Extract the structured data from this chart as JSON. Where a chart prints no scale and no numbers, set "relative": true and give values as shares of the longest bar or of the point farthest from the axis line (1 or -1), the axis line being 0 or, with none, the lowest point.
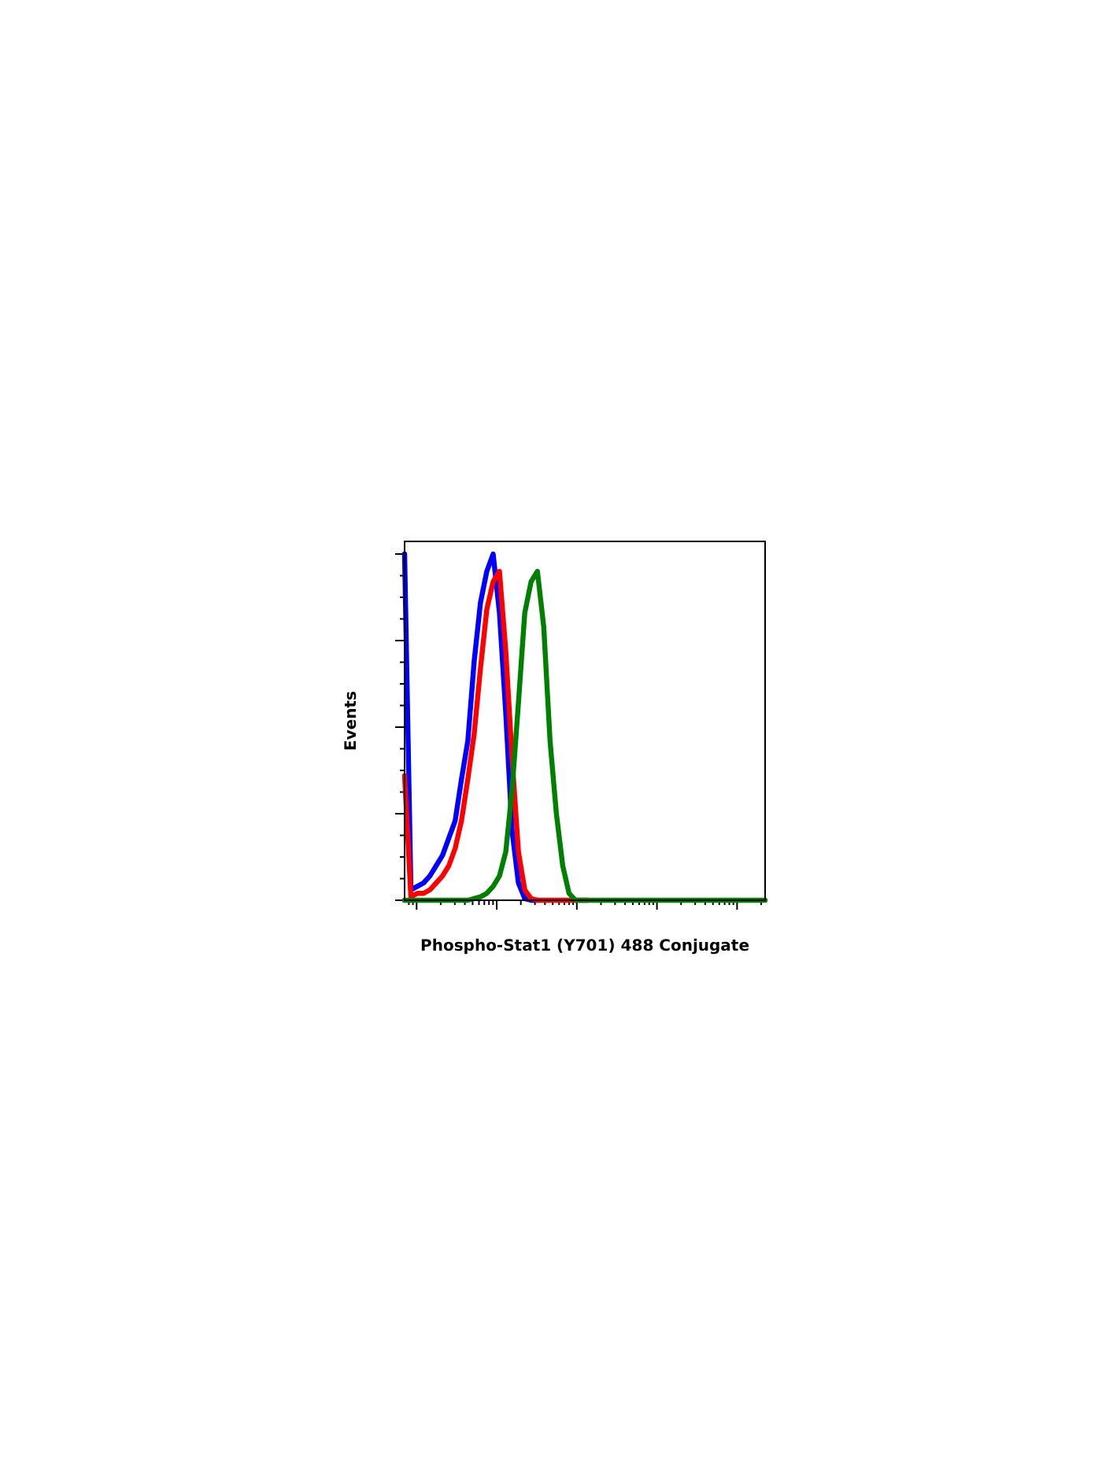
{
  "chart_data": {
    "type": "line",
    "relative": true,
    "xlabel": "Phospho-Stat1 (Y701) 488 Conjugate",
    "ylabel": "Events",
    "line_style": "solid",
    "categories": [
      null,
      null,
      null,
      null,
      null,
      null,
      null,
      null,
      null,
      null,
      null,
      null,
      null,
      null,
      null,
      null,
      null,
      null,
      null,
      null,
      null,
      null,
      null,
      null,
      null,
      null,
      null,
      null,
      null,
      null,
      null,
      null,
      null,
      null,
      null,
      null,
      null,
      null,
      null,
      null,
      null,
      null,
      null,
      null,
      null,
      null,
      null,
      null,
      null,
      null,
      null,
      null,
      null,
      null,
      null,
      null,
      null,
      null
    ],
    "series": [
      {
        "color": "#0000ff",
        "values": [
          1.0,
          0.03,
          0.04,
          0.05,
          0.07,
          0.1,
          0.13,
          0.18,
          0.23,
          0.35,
          0.46,
          0.69,
          0.86,
          0.95,
          1.0,
          0.83,
          0.54,
          0.2,
          0.05,
          0.005,
          0,
          0,
          null,
          null,
          null,
          null,
          null,
          null,
          null,
          null,
          null,
          null,
          null,
          null,
          null,
          null,
          null,
          null,
          null,
          null,
          null,
          null,
          null,
          null,
          null,
          null,
          null,
          null,
          null,
          null,
          null,
          null,
          null,
          null,
          null,
          null,
          null,
          null
        ]
      },
      {
        "color": "#ff0000",
        "values": [
          0.36,
          0.01,
          0.02,
          0.02,
          0.03,
          0.05,
          0.07,
          0.1,
          0.15,
          0.23,
          0.35,
          0.48,
          0.67,
          0.84,
          0.92,
          0.95,
          0.72,
          0.41,
          0.14,
          0.03,
          0.005,
          0,
          0,
          0,
          0,
          0,
          0,
          0,
          0,
          0,
          null,
          null,
          null,
          null,
          null,
          null,
          null,
          null,
          null,
          null,
          null,
          null,
          null,
          null,
          null,
          null,
          null,
          null,
          null,
          null,
          null,
          null,
          null,
          null,
          null,
          null,
          null,
          null
        ]
      },
      {
        "color": "#008000",
        "values": [
          0,
          0,
          0,
          0,
          0,
          0,
          0,
          0,
          0,
          0,
          0,
          0.005,
          0.01,
          0.02,
          0.04,
          0.07,
          0.14,
          0.32,
          0.57,
          0.83,
          0.92,
          0.95,
          0.79,
          0.46,
          0.25,
          0.1,
          0.02,
          0,
          0,
          0,
          0,
          0,
          0,
          0,
          0,
          0,
          0,
          0,
          0,
          0,
          0,
          0,
          0,
          0,
          0,
          0,
          0,
          0,
          0,
          0,
          0,
          0,
          0,
          0,
          0,
          0,
          0,
          0
        ]
      }
    ]
  }
}
